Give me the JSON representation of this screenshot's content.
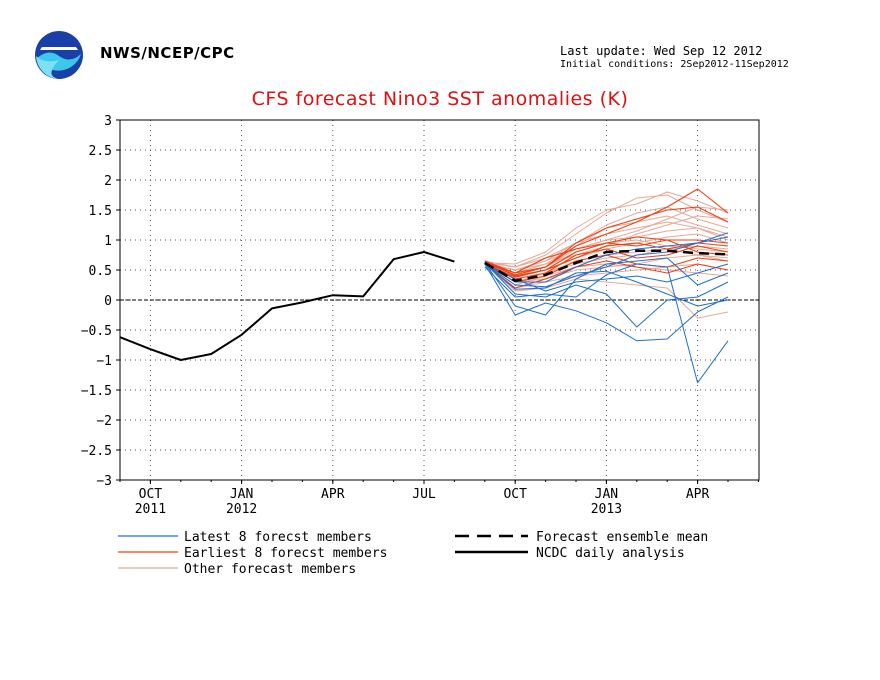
{
  "header": {
    "org": "NWS/NCEP/CPC",
    "last_update": "Last update: Wed Sep 12 2012",
    "initial_conditions": "Initial conditions: 2Sep2012-11Sep2012"
  },
  "colors": {
    "latest": "#1f6fd0",
    "earliest": "#ee4010",
    "other": "#e8a898",
    "mean": "#000000",
    "analysis": "#000000",
    "title": "#e01010"
  },
  "chart_data": {
    "type": "line",
    "title": "CFS forecast Nino3 SST anomalies (K)",
    "ylim": [
      -3,
      3
    ],
    "yticks": [
      "3",
      "2.5",
      "2",
      "1.5",
      "1",
      "0.5",
      "0",
      "−0.5",
      "−1",
      "−1.5",
      "−2",
      "−2.5",
      "−3"
    ],
    "x_ticks": [
      {
        "label": "OCT",
        "year": "2011",
        "date": "2011-10"
      },
      {
        "label": "JAN",
        "year": "2012",
        "date": "2012-01"
      },
      {
        "label": "APR",
        "year": "",
        "date": "2012-04"
      },
      {
        "label": "JUL",
        "year": "",
        "date": "2012-07"
      },
      {
        "label": "OCT",
        "year": "",
        "date": "2012-10"
      },
      {
        "label": "JAN",
        "year": "2013",
        "date": "2013-01"
      },
      {
        "label": "APR",
        "year": "",
        "date": "2013-04"
      }
    ],
    "grid": true,
    "legend": [
      {
        "label": "Latest 8 forecst members",
        "style": "latest"
      },
      {
        "label": "Earliest 8 forecst members",
        "style": "earliest"
      },
      {
        "label": "Other forecast members",
        "style": "other"
      },
      {
        "label": "Forecast ensemble mean",
        "style": "mean"
      },
      {
        "label": "NCDC daily analysis",
        "style": "analysis"
      }
    ],
    "observed": {
      "x": [
        "2011-09",
        "2011-10",
        "2011-11",
        "2011-12",
        "2012-01",
        "2012-02",
        "2012-03",
        "2012-04",
        "2012-05",
        "2012-06",
        "2012-07",
        "2012-08"
      ],
      "values": [
        -0.62,
        -0.82,
        -1.0,
        -0.9,
        -0.58,
        -0.14,
        -0.04,
        0.08,
        0.06,
        0.68,
        0.8,
        0.64
      ]
    },
    "forecast_x": [
      "2012-09",
      "2012-10",
      "2012-11",
      "2012-12",
      "2013-01",
      "2013-02",
      "2013-03",
      "2013-04",
      "2013-05"
    ],
    "ensemble_mean": [
      0.62,
      0.32,
      0.42,
      0.62,
      0.8,
      0.82,
      0.82,
      0.78,
      0.76
    ],
    "latest_members": [
      [
        0.6,
        -0.25,
        -0.05,
        -0.18,
        -0.38,
        -0.68,
        -0.65,
        -0.2,
        0.05
      ],
      [
        0.55,
        0.05,
        0.1,
        0.05,
        0.42,
        0.6,
        0.55,
        -1.38,
        -0.68
      ],
      [
        0.6,
        0.25,
        0.22,
        0.4,
        0.55,
        0.75,
        0.8,
        0.95,
        1.05
      ],
      [
        0.62,
        -0.1,
        -0.25,
        0.35,
        0.6,
        0.65,
        0.7,
        0.25,
        0.45
      ],
      [
        0.6,
        0.18,
        0.2,
        0.45,
        0.48,
        0.3,
        0.1,
        -0.1,
        0.0
      ],
      [
        0.62,
        0.1,
        0.05,
        0.25,
        0.1,
        -0.45,
        0.0,
        0.05,
        0.3
      ],
      [
        0.6,
        0.3,
        0.3,
        0.55,
        0.75,
        0.85,
        0.9,
        0.95,
        1.12
      ],
      [
        0.62,
        0.35,
        0.15,
        0.3,
        0.35,
        0.4,
        0.3,
        0.45,
        0.6
      ]
    ],
    "earliest_members": [
      [
        0.65,
        0.45,
        0.55,
        0.9,
        1.1,
        1.3,
        1.55,
        1.85,
        1.45
      ],
      [
        0.65,
        0.4,
        0.5,
        0.8,
        0.95,
        0.9,
        1.0,
        1.0,
        0.95
      ],
      [
        0.6,
        0.35,
        0.45,
        0.75,
        0.85,
        0.7,
        0.75,
        0.9,
        0.8
      ],
      [
        0.62,
        0.42,
        0.55,
        0.95,
        1.2,
        1.35,
        1.5,
        1.55,
        1.3
      ],
      [
        0.62,
        0.3,
        0.4,
        0.65,
        0.75,
        0.6,
        0.55,
        0.7,
        0.65
      ],
      [
        0.6,
        0.2,
        0.35,
        0.55,
        0.65,
        0.55,
        0.45,
        0.6,
        0.5
      ],
      [
        0.62,
        0.45,
        0.7,
        0.85,
        0.95,
        1.05,
        1.0,
        0.8,
        0.75
      ],
      [
        0.6,
        0.38,
        0.5,
        0.7,
        0.9,
        0.95,
        0.85,
        0.95,
        0.9
      ]
    ],
    "other_members": [
      [
        0.65,
        0.55,
        0.75,
        1.1,
        1.45,
        1.7,
        1.75,
        1.5,
        1.3
      ],
      [
        0.6,
        0.5,
        0.6,
        0.9,
        1.2,
        1.3,
        1.4,
        1.25,
        1.1
      ],
      [
        0.62,
        0.6,
        0.8,
        1.2,
        1.5,
        1.6,
        1.8,
        1.65,
        1.45
      ],
      [
        0.6,
        0.45,
        0.55,
        0.85,
        1.0,
        1.05,
        1.15,
        1.2,
        1.0
      ],
      [
        0.6,
        0.4,
        0.5,
        0.7,
        0.85,
        0.95,
        1.05,
        1.1,
        0.95
      ],
      [
        0.62,
        0.35,
        0.45,
        0.6,
        0.7,
        0.75,
        0.85,
        0.9,
        0.85
      ],
      [
        0.6,
        0.3,
        0.35,
        0.5,
        0.55,
        0.6,
        0.7,
        0.75,
        0.65
      ],
      [
        0.62,
        0.5,
        0.65,
        0.95,
        1.25,
        1.45,
        1.55,
        1.35,
        1.2
      ],
      [
        0.6,
        0.2,
        0.3,
        0.4,
        0.45,
        0.5,
        0.55,
        0.6,
        0.5
      ],
      [
        0.62,
        0.45,
        0.6,
        0.75,
        0.9,
        1.1,
        1.25,
        1.4,
        1.35
      ],
      [
        0.6,
        0.25,
        0.4,
        0.55,
        0.6,
        0.55,
        0.5,
        0.45,
        0.4
      ],
      [
        0.62,
        0.55,
        0.7,
        0.95,
        1.1,
        1.2,
        1.3,
        1.2,
        1.05
      ],
      [
        0.6,
        0.15,
        0.2,
        0.35,
        0.3,
        0.25,
        0.2,
        -0.3,
        -0.2
      ],
      [
        0.62,
        0.4,
        0.55,
        0.8,
        0.95,
        1.0,
        0.9,
        0.85,
        0.8
      ],
      [
        0.6,
        0.3,
        0.45,
        0.65,
        0.75,
        0.8,
        0.85,
        0.75,
        0.7
      ],
      [
        0.62,
        0.5,
        0.65,
        0.85,
        1.0,
        1.15,
        1.35,
        1.55,
        1.5
      ]
    ]
  }
}
